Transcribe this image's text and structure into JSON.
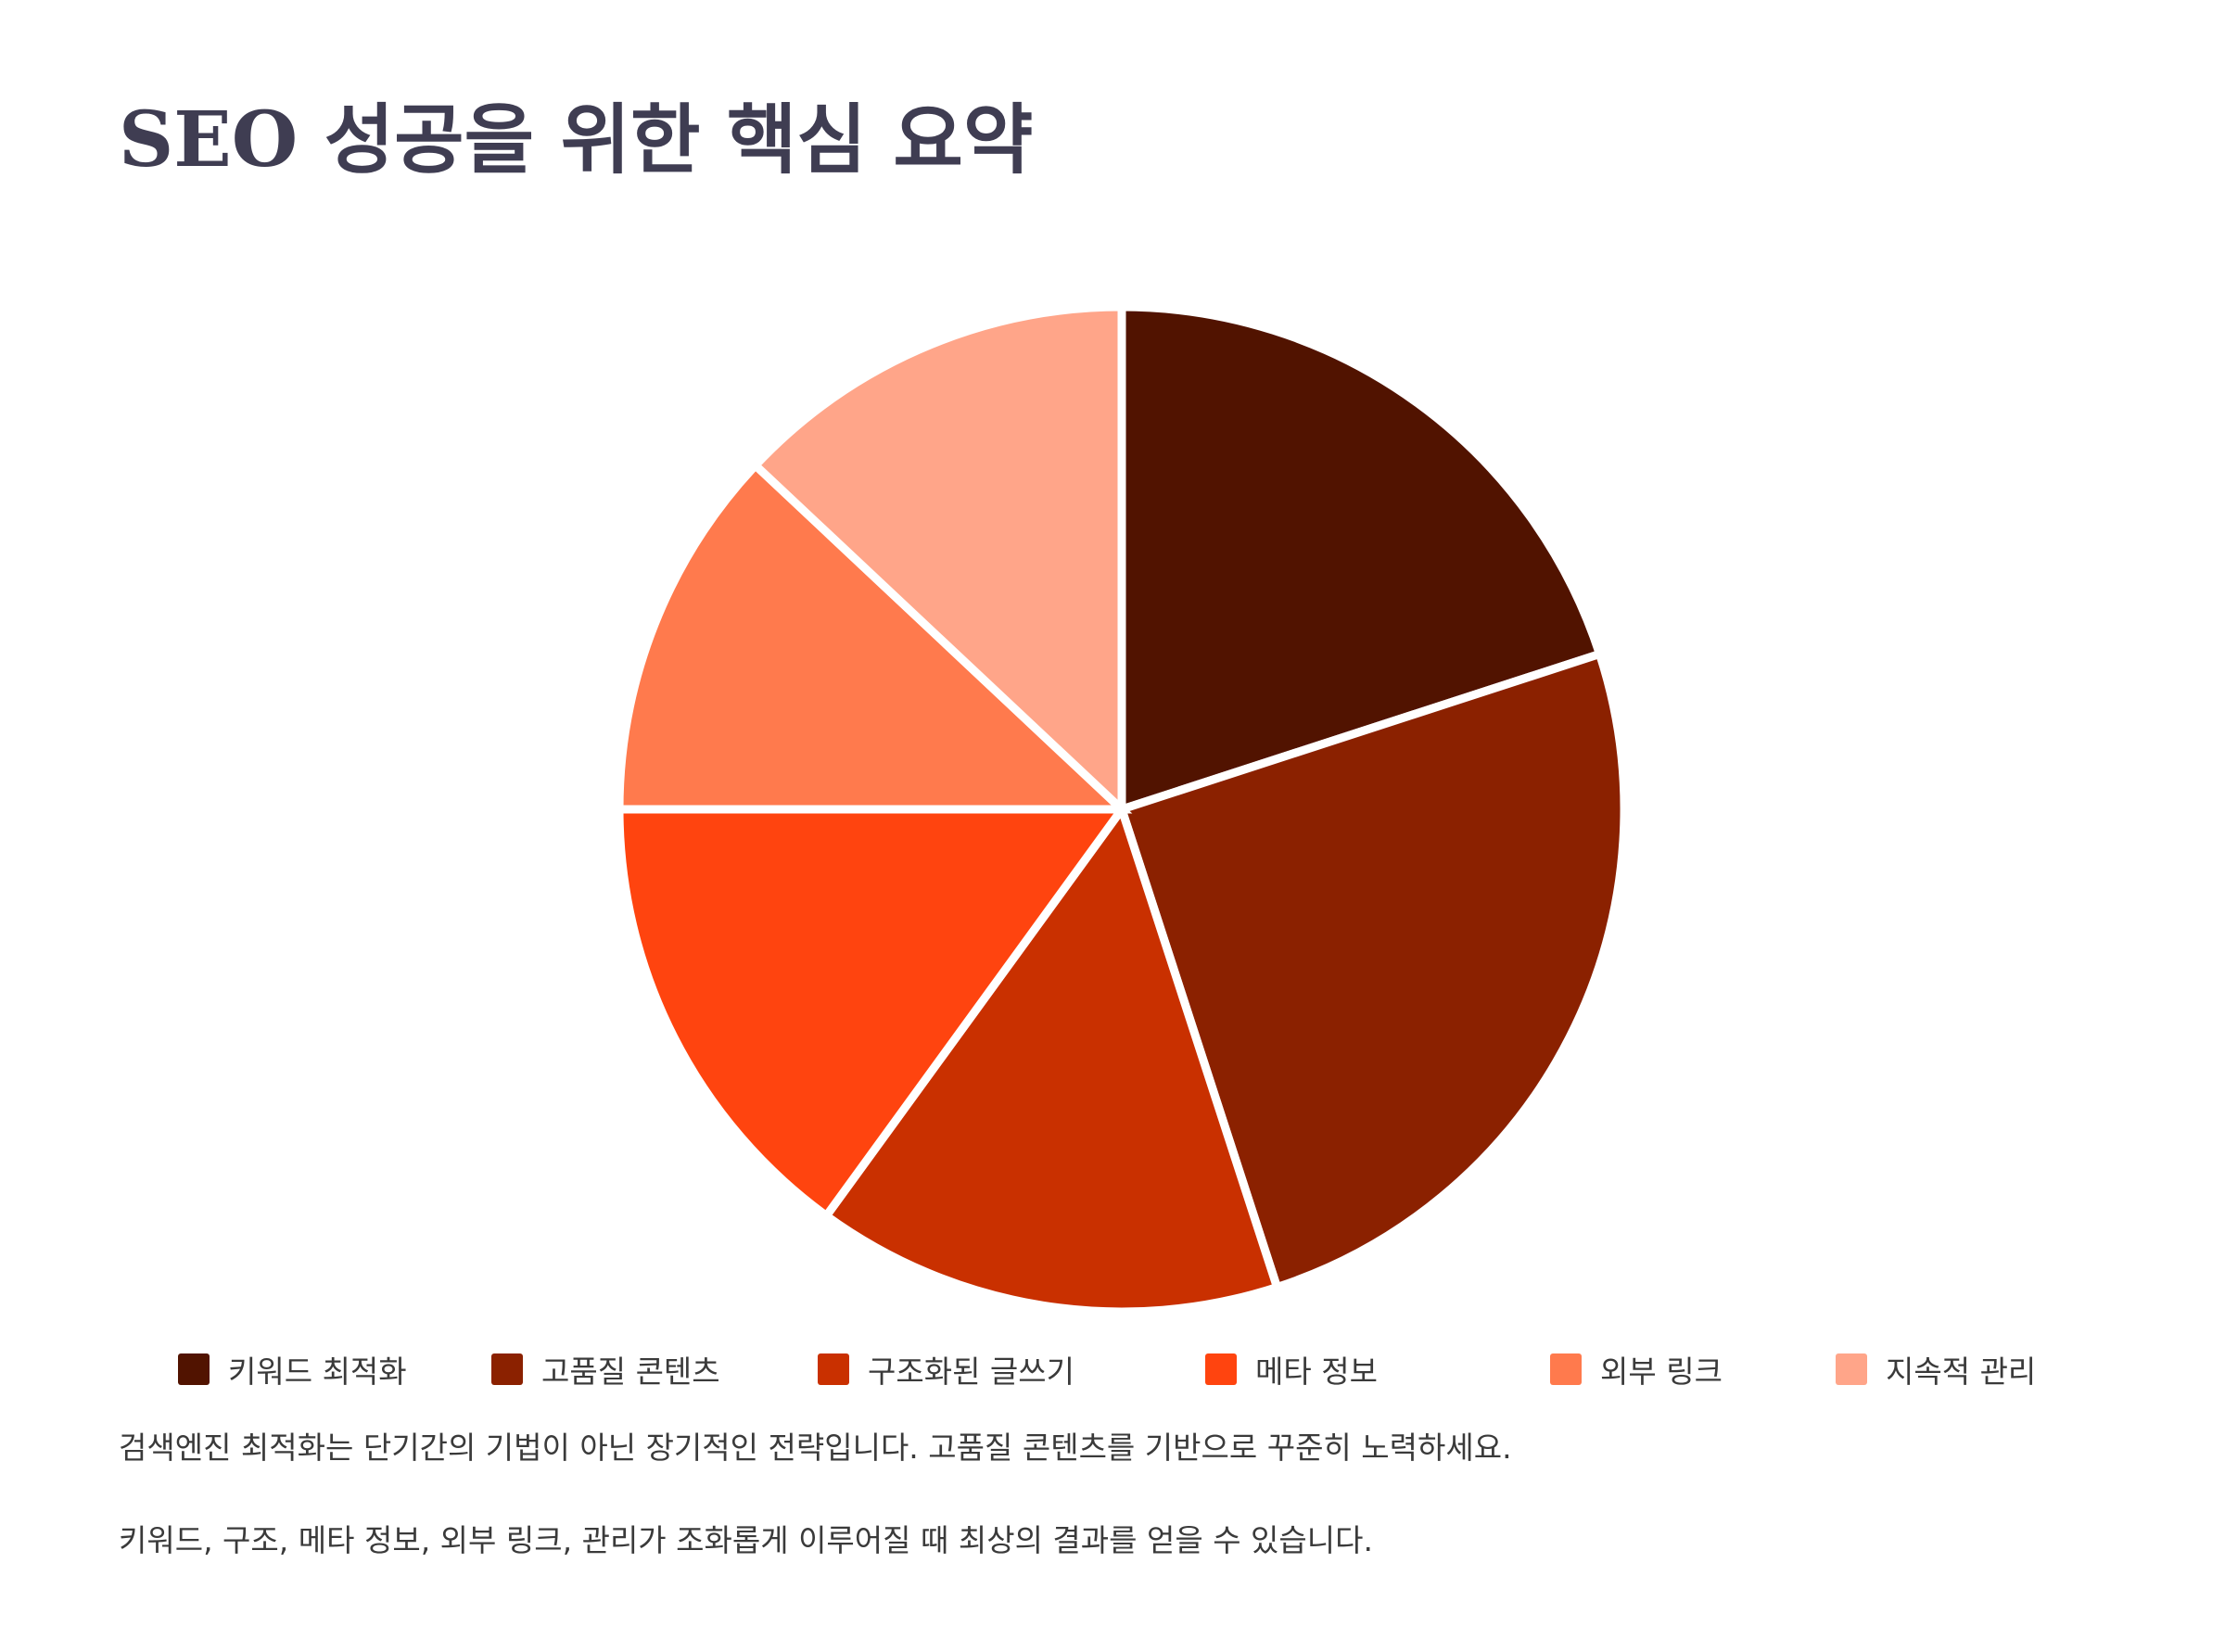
{
  "title": "SEO 성공을 위한 핵심 요약",
  "chart_data": {
    "type": "pie",
    "categories": [
      "키워드 최적화",
      "고품질 콘텐츠",
      "구조화된 글쓰기",
      "메타 정보",
      "외부 링크",
      "지속적 관리"
    ],
    "values": [
      20,
      25,
      15,
      15,
      12,
      13
    ],
    "colors": [
      "#511300",
      "#8b2100",
      "#c93000",
      "#ff440f",
      "#ff7a4d",
      "#ffa589"
    ],
    "slice_border_color": "#ffffff",
    "start_angle": "12 o'clock",
    "direction": "clockwise",
    "legend_position": "bottom"
  },
  "summary": [
    "검색엔진 최적화는 단기간의 기법이 아닌 장기적인 전략입니다. 고품질 콘텐츠를 기반으로 꾸준히 노력하세요.",
    "키워드, 구조, 메타 정보, 외부 링크, 관리가 조화롭게 이루어질 때 최상의 결과를 얻을 수 있습니다."
  ]
}
